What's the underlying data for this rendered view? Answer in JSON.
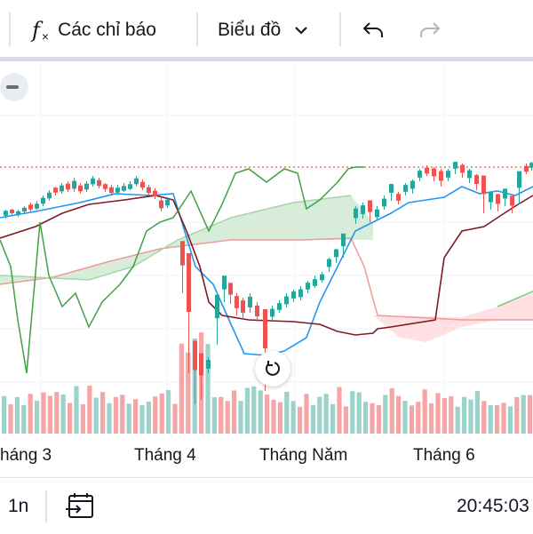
{
  "toolbar": {
    "indicators_icon": "fx-icon",
    "indicators_label": "Các chỉ báo",
    "chart_type_label": "Biểu đồ",
    "undo_icon": "undo-icon",
    "redo_icon": "redo-icon"
  },
  "x_axis_labels": [
    "háng 3",
    "Tháng 4",
    "Tháng Năm",
    "Tháng 6"
  ],
  "bottom_bar": {
    "interval_label": "1n",
    "goto_date_icon": "calendar-goto-icon",
    "clock": "20:45:03"
  },
  "colors": {
    "up": "#26a69a",
    "down": "#ef5350",
    "volume_up": "#9bd3cb",
    "volume_down": "#f5a5a5",
    "conversion_line": "#2196f3",
    "base_line": "#801922",
    "lagging_span": "#43a047",
    "cloud_bull": "#c8e6c9",
    "cloud_bear": "#ffcdd2",
    "price_line": "#ef5350"
  }
}
